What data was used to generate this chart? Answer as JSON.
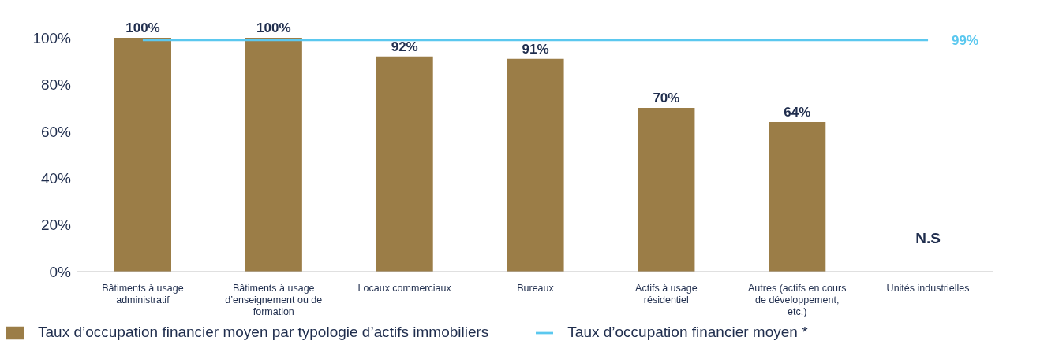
{
  "chart_data": {
    "type": "bar",
    "categories": [
      "Bâtiments à usage administratif",
      "Bâtiments à usage d’enseignement ou de formation",
      "Locaux commerciaux",
      "Bureaux",
      "Actifs à usage résidentiel",
      "Autres (actifs en cours de développement, etc.)",
      "Unités industrielles"
    ],
    "series": [
      {
        "name": "Taux d’occupation financier moyen par typologie d’actifs immobiliers",
        "color": "#9b7d47",
        "values": [
          100,
          100,
          92,
          91,
          70,
          64,
          null
        ],
        "value_labels": [
          "100%",
          "100%",
          "92%",
          "91%",
          "70%",
          "64%",
          "N.S"
        ]
      },
      {
        "name": "Taux d’occupation financier moyen *",
        "type": "line",
        "color": "#5bc8ef",
        "values": [
          99,
          99,
          99,
          99,
          99,
          99,
          99
        ],
        "value_labels": [
          null,
          null,
          null,
          null,
          null,
          null,
          "99%"
        ]
      }
    ],
    "ylim": [
      0,
      100
    ],
    "yticks": [
      {
        "value": 0,
        "label": "0%"
      },
      {
        "value": 20,
        "label": "20%"
      },
      {
        "value": 40,
        "label": "40%"
      },
      {
        "value": 60,
        "label": "60%"
      },
      {
        "value": 80,
        "label": "80%"
      },
      {
        "value": 100,
        "label": "100%"
      }
    ],
    "grid": false,
    "legend": "bottom",
    "marker": "none",
    "line_style": "solid"
  }
}
